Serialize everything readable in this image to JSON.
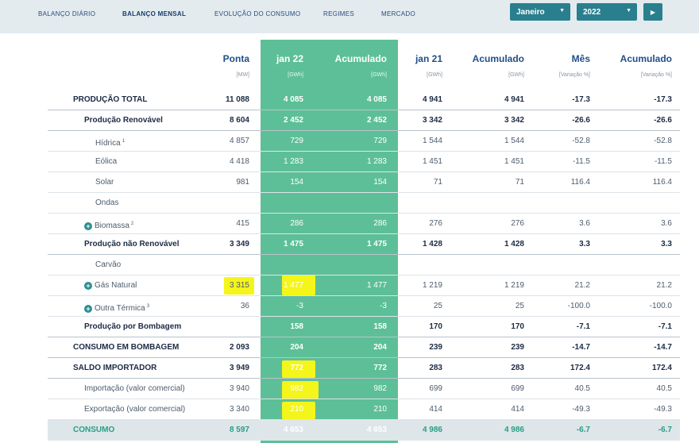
{
  "nav": {
    "items": [
      "BALANÇO DIÁRIO",
      "BALANÇO MENSAL",
      "EVOLUÇÃO DO CONSUMO",
      "REGIMES",
      "MERCADO"
    ],
    "active": "BALANÇO MENSAL"
  },
  "controls": {
    "month": "Janeiro",
    "year": "2022",
    "next_icon": "chevron-right-icon"
  },
  "columns": [
    {
      "title": "Ponta",
      "unit": "[MW]"
    },
    {
      "title": "jan 22",
      "unit": "[GWh]"
    },
    {
      "title": "Acumulado",
      "unit": "[GWh]"
    },
    {
      "title": "jan 21",
      "unit": "[GWh]"
    },
    {
      "title": "Acumulado",
      "unit": "[GWh]"
    },
    {
      "title": "Mês",
      "unit": "[Variação %]"
    },
    {
      "title": "Acumulado",
      "unit": "[Variação %]"
    }
  ],
  "rows": [
    {
      "label": "PRODUÇÃO TOTAL",
      "style": "bold",
      "indent": 0,
      "sup": "",
      "expand": false,
      "values": [
        "11 088",
        "4 085",
        "4 085",
        "4 941",
        "4 941",
        "-17.3",
        "-17.3"
      ]
    },
    {
      "label": "Produção Renovável",
      "style": "bold",
      "indent": 1,
      "sup": "",
      "expand": false,
      "values": [
        "8 604",
        "2 452",
        "2 452",
        "3 342",
        "3 342",
        "-26.6",
        "-26.6"
      ]
    },
    {
      "label": "Hídrica",
      "style": "normal",
      "indent": 2,
      "sup": "1",
      "expand": false,
      "values": [
        "4 857",
        "729",
        "729",
        "1 544",
        "1 544",
        "-52.8",
        "-52.8"
      ]
    },
    {
      "label": "Eólica",
      "style": "normal",
      "indent": 2,
      "sup": "",
      "expand": false,
      "values": [
        "4 418",
        "1 283",
        "1 283",
        "1 451",
        "1 451",
        "-11.5",
        "-11.5"
      ]
    },
    {
      "label": "Solar",
      "style": "normal",
      "indent": 2,
      "sup": "",
      "expand": false,
      "values": [
        "981",
        "154",
        "154",
        "71",
        "71",
        "116.4",
        "116.4"
      ]
    },
    {
      "label": "Ondas",
      "style": "normal",
      "indent": 2,
      "sup": "",
      "expand": false,
      "values": [
        "",
        "",
        "",
        "",
        "",
        "",
        ""
      ]
    },
    {
      "label": "Biomassa",
      "style": "normal",
      "indent": 1,
      "sup": "2",
      "expand": true,
      "values": [
        "415",
        "286",
        "286",
        "276",
        "276",
        "3.6",
        "3.6"
      ]
    },
    {
      "label": "Produção não Renovável",
      "style": "bold",
      "indent": 1,
      "sup": "",
      "expand": false,
      "values": [
        "3 349",
        "1 475",
        "1 475",
        "1 428",
        "1 428",
        "3.3",
        "3.3"
      ]
    },
    {
      "label": "Carvão",
      "style": "normal",
      "indent": 2,
      "sup": "",
      "expand": false,
      "values": [
        "",
        "",
        "",
        "",
        "",
        "",
        ""
      ]
    },
    {
      "label": "Gás Natural",
      "style": "normal",
      "indent": 1,
      "sup": "",
      "expand": true,
      "values": [
        "3 315",
        "1 477",
        "1 477",
        "1 219",
        "1 219",
        "21.2",
        "21.2"
      ]
    },
    {
      "label": "Outra Térmica",
      "style": "normal",
      "indent": 1,
      "sup": "3",
      "expand": true,
      "values": [
        "36",
        "-3",
        "-3",
        "25",
        "25",
        "-100.0",
        "-100.0"
      ]
    },
    {
      "label": "Produção por Bombagem",
      "style": "bold",
      "indent": 1,
      "sup": "",
      "expand": false,
      "values": [
        "",
        "158",
        "158",
        "170",
        "170",
        "-7.1",
        "-7.1"
      ]
    },
    {
      "label": "CONSUMO EM BOMBAGEM",
      "style": "bold",
      "indent": 0,
      "sup": "",
      "expand": false,
      "values": [
        "2 093",
        "204",
        "204",
        "239",
        "239",
        "-14.7",
        "-14.7"
      ]
    },
    {
      "label": "SALDO IMPORTADOR",
      "style": "bold",
      "indent": 0,
      "sup": "",
      "expand": false,
      "values": [
        "3 949",
        "772",
        "772",
        "283",
        "283",
        "172.4",
        "172.4"
      ]
    },
    {
      "label": "Importação (valor comercial)",
      "style": "normal",
      "indent": 1,
      "sup": "",
      "expand": false,
      "values": [
        "3 940",
        "982",
        "982",
        "699",
        "699",
        "40.5",
        "40.5"
      ]
    },
    {
      "label": "Exportação (valor comercial)",
      "style": "normal",
      "indent": 1,
      "sup": "",
      "expand": false,
      "values": [
        "3 340",
        "210",
        "210",
        "414",
        "414",
        "-49.3",
        "-49.3"
      ]
    },
    {
      "label": "CONSUMO",
      "style": "footer",
      "indent": 0,
      "sup": "",
      "expand": false,
      "values": [
        "8 597",
        "4 653",
        "4 653",
        "4 986",
        "4 986",
        "-6.7",
        "-6.7"
      ]
    }
  ],
  "colors": {
    "accent_green": "#5dbf97",
    "header_blue": "#1f4f86",
    "control_teal": "#2a7f8e",
    "highlight": "#f4f51a"
  }
}
